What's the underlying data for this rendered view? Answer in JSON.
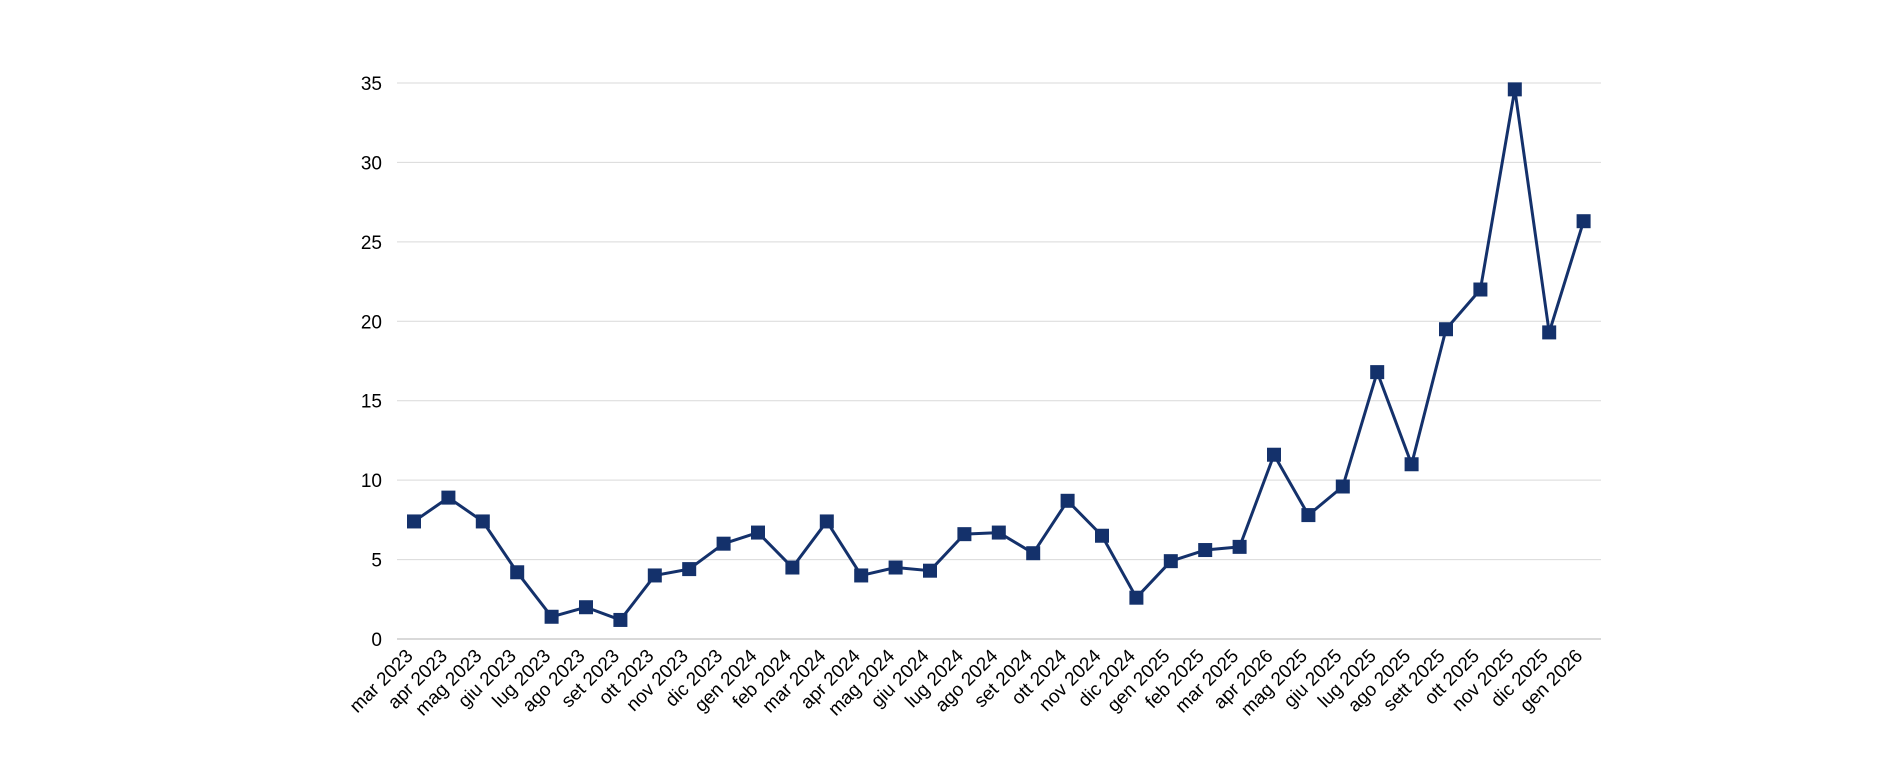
{
  "chart_data": {
    "type": "line",
    "title": "",
    "xlabel": "",
    "ylabel": "",
    "categories": [
      "mar 2023",
      "apr 2023",
      "mag 2023",
      "giu 2023",
      "lug 2023",
      "ago 2023",
      "set 2023",
      "ott 2023",
      "nov 2023",
      "dic 2023",
      "gen 2024",
      "feb 2024",
      "mar 2024",
      "apr 2024",
      "mag 2024",
      "giu 2024",
      "lug 2024",
      "ago 2024",
      "set 2024",
      "ott 2024",
      "nov 2024",
      "dic 2024",
      "gen 2025",
      "feb 2025",
      "mar 2025",
      "apr 2026",
      "mag 2025",
      "giu 2025",
      "lug 2025",
      "ago 2025",
      "sett 2025",
      "ott 2025",
      "nov 2025",
      "dic 2025",
      "gen 2026"
    ],
    "series": [
      {
        "values": [
          7.4,
          8.9,
          7.4,
          4.2,
          1.4,
          2.0,
          1.2,
          4.0,
          4.4,
          6.0,
          6.7,
          4.5,
          7.4,
          4.0,
          4.5,
          4.3,
          6.6,
          6.7,
          5.4,
          8.7,
          6.5,
          2.6,
          4.9,
          5.6,
          5.8,
          11.6,
          7.8,
          9.6,
          16.8,
          11.0,
          19.5,
          22.0,
          34.6,
          19.3,
          26.3
        ]
      }
    ],
    "y_ticks": [
      "0",
      "5",
      "10",
      "15",
      "20",
      "25",
      "30",
      "35"
    ],
    "ylim": [
      0,
      35
    ],
    "grid": true,
    "legend": "none",
    "marker": "square",
    "color": "#14316b"
  }
}
